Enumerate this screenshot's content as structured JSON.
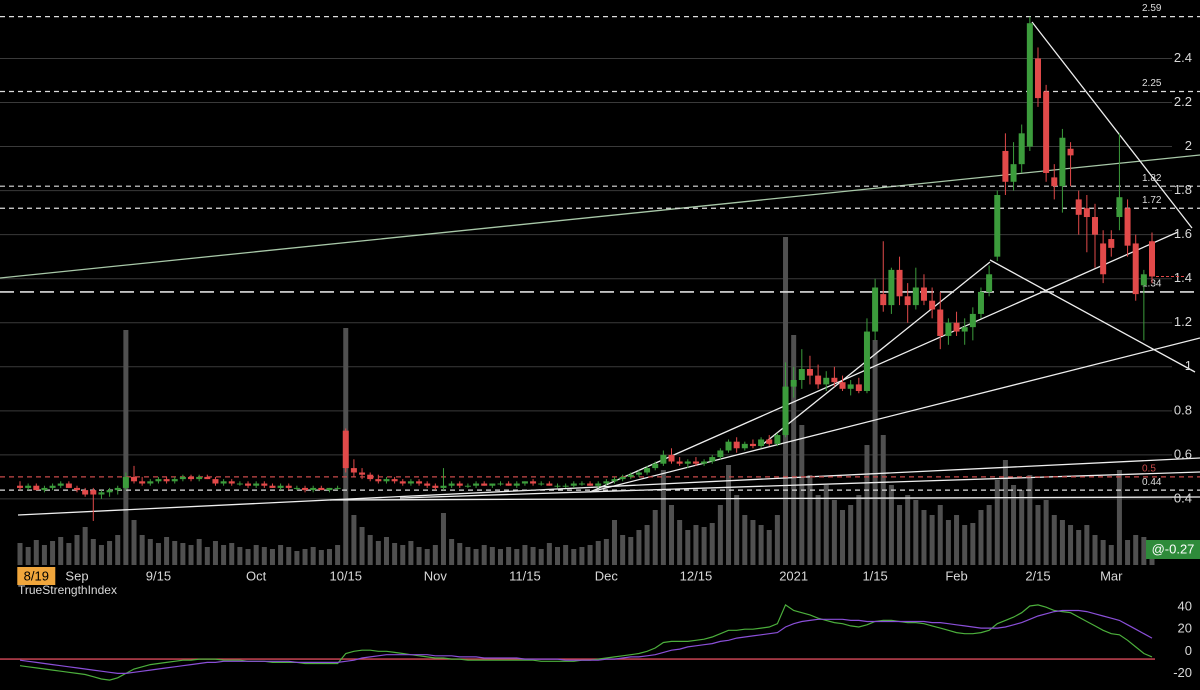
{
  "chart_data": {
    "type": "candlestick",
    "categories": [
      null,
      null,
      "8/19",
      null,
      null,
      null,
      null,
      "Sep",
      null,
      null,
      null,
      null,
      null,
      null,
      null,
      null,
      null,
      "9/15",
      null,
      null,
      null,
      null,
      null,
      null,
      null,
      null,
      null,
      null,
      null,
      "Oct",
      null,
      null,
      null,
      null,
      null,
      null,
      null,
      null,
      null,
      null,
      "10/15",
      null,
      null,
      null,
      null,
      null,
      null,
      null,
      null,
      null,
      null,
      "Nov",
      null,
      null,
      null,
      null,
      null,
      null,
      null,
      null,
      null,
      null,
      "11/15",
      null,
      null,
      null,
      null,
      null,
      null,
      null,
      null,
      null,
      "Dec",
      null,
      null,
      null,
      null,
      null,
      null,
      null,
      null,
      null,
      null,
      "12/15",
      null,
      null,
      null,
      null,
      null,
      null,
      null,
      null,
      null,
      null,
      null,
      "2021",
      null,
      null,
      null,
      null,
      null,
      null,
      null,
      null,
      null,
      "1/15",
      null,
      null,
      null,
      null,
      null,
      null,
      null,
      null,
      null,
      "Feb",
      null,
      null,
      null,
      null,
      null,
      null,
      null,
      null,
      null,
      "2/15",
      null,
      null,
      null,
      null,
      null,
      null,
      null,
      null,
      "Mar",
      null,
      null,
      null,
      null,
      null
    ],
    "ohlc": [
      [
        0.46,
        0.48,
        0.44,
        0.45
      ],
      [
        0.45,
        0.47,
        0.44,
        0.46
      ],
      [
        0.46,
        0.47,
        0.44,
        0.44
      ],
      [
        0.44,
        0.46,
        0.43,
        0.45
      ],
      [
        0.45,
        0.47,
        0.44,
        0.46
      ],
      [
        0.46,
        0.48,
        0.45,
        0.47
      ],
      [
        0.47,
        0.48,
        0.45,
        0.45
      ],
      [
        0.45,
        0.46,
        0.43,
        0.44
      ],
      [
        0.44,
        0.45,
        0.41,
        0.42
      ],
      [
        0.44,
        0.45,
        0.3,
        0.42
      ],
      [
        0.42,
        0.44,
        0.4,
        0.43
      ],
      [
        0.43,
        0.45,
        0.41,
        0.44
      ],
      [
        0.44,
        0.46,
        0.42,
        0.45
      ],
      [
        0.45,
        0.52,
        0.44,
        0.5
      ],
      [
        0.5,
        0.55,
        0.47,
        0.48
      ],
      [
        0.48,
        0.5,
        0.46,
        0.47
      ],
      [
        0.47,
        0.49,
        0.46,
        0.48
      ],
      [
        0.48,
        0.5,
        0.47,
        0.49
      ],
      [
        0.49,
        0.5,
        0.47,
        0.48
      ],
      [
        0.48,
        0.5,
        0.47,
        0.49
      ],
      [
        0.49,
        0.51,
        0.48,
        0.5
      ],
      [
        0.5,
        0.51,
        0.48,
        0.49
      ],
      [
        0.49,
        0.51,
        0.48,
        0.5
      ],
      [
        0.5,
        0.51,
        0.49,
        0.49
      ],
      [
        0.49,
        0.5,
        0.46,
        0.47
      ],
      [
        0.47,
        0.49,
        0.46,
        0.48
      ],
      [
        0.48,
        0.49,
        0.46,
        0.47
      ],
      [
        0.47,
        0.48,
        0.46,
        0.47
      ],
      [
        0.47,
        0.48,
        0.45,
        0.46
      ],
      [
        0.46,
        0.48,
        0.45,
        0.47
      ],
      [
        0.47,
        0.48,
        0.45,
        0.46
      ],
      [
        0.46,
        0.47,
        0.45,
        0.45
      ],
      [
        0.45,
        0.47,
        0.44,
        0.46
      ],
      [
        0.46,
        0.47,
        0.44,
        0.45
      ],
      [
        0.45,
        0.46,
        0.44,
        0.45
      ],
      [
        0.45,
        0.46,
        0.43,
        0.44
      ],
      [
        0.44,
        0.46,
        0.43,
        0.45
      ],
      [
        0.45,
        0.46,
        0.44,
        0.44
      ],
      [
        0.44,
        0.45,
        0.43,
        0.45
      ],
      [
        0.45,
        0.46,
        0.44,
        0.45
      ],
      [
        0.71,
        0.72,
        0.52,
        0.54
      ],
      [
        0.54,
        0.58,
        0.5,
        0.52
      ],
      [
        0.52,
        0.54,
        0.49,
        0.51
      ],
      [
        0.51,
        0.52,
        0.48,
        0.49
      ],
      [
        0.49,
        0.51,
        0.47,
        0.48
      ],
      [
        0.48,
        0.5,
        0.47,
        0.49
      ],
      [
        0.49,
        0.5,
        0.47,
        0.48
      ],
      [
        0.48,
        0.49,
        0.46,
        0.47
      ],
      [
        0.47,
        0.49,
        0.46,
        0.48
      ],
      [
        0.48,
        0.49,
        0.46,
        0.47
      ],
      [
        0.47,
        0.48,
        0.45,
        0.46
      ],
      [
        0.46,
        0.47,
        0.44,
        0.45
      ],
      [
        0.45,
        0.54,
        0.44,
        0.46
      ],
      [
        0.46,
        0.48,
        0.45,
        0.47
      ],
      [
        0.47,
        0.48,
        0.45,
        0.46
      ],
      [
        0.46,
        0.47,
        0.45,
        0.46
      ],
      [
        0.46,
        0.48,
        0.45,
        0.47
      ],
      [
        0.47,
        0.48,
        0.46,
        0.46
      ],
      [
        0.46,
        0.47,
        0.45,
        0.47
      ],
      [
        0.47,
        0.48,
        0.46,
        0.47
      ],
      [
        0.47,
        0.48,
        0.46,
        0.46
      ],
      [
        0.46,
        0.48,
        0.45,
        0.47
      ],
      [
        0.47,
        0.48,
        0.46,
        0.48
      ],
      [
        0.48,
        0.49,
        0.46,
        0.47
      ],
      [
        0.47,
        0.48,
        0.46,
        0.47
      ],
      [
        0.47,
        0.48,
        0.46,
        0.46
      ],
      [
        0.46,
        0.47,
        0.45,
        0.46
      ],
      [
        0.46,
        0.47,
        0.45,
        0.46
      ],
      [
        0.46,
        0.48,
        0.45,
        0.47
      ],
      [
        0.47,
        0.48,
        0.46,
        0.47
      ],
      [
        0.47,
        0.48,
        0.46,
        0.46
      ],
      [
        0.46,
        0.48,
        0.45,
        0.47
      ],
      [
        0.47,
        0.49,
        0.46,
        0.48
      ],
      [
        0.48,
        0.5,
        0.47,
        0.49
      ],
      [
        0.49,
        0.51,
        0.48,
        0.5
      ],
      [
        0.5,
        0.52,
        0.49,
        0.51
      ],
      [
        0.51,
        0.53,
        0.5,
        0.52
      ],
      [
        0.52,
        0.55,
        0.51,
        0.54
      ],
      [
        0.54,
        0.57,
        0.53,
        0.56
      ],
      [
        0.56,
        0.62,
        0.55,
        0.6
      ],
      [
        0.6,
        0.63,
        0.56,
        0.57
      ],
      [
        0.57,
        0.59,
        0.55,
        0.56
      ],
      [
        0.56,
        0.58,
        0.54,
        0.57
      ],
      [
        0.57,
        0.59,
        0.55,
        0.56
      ],
      [
        0.56,
        0.58,
        0.55,
        0.57
      ],
      [
        0.57,
        0.6,
        0.56,
        0.59
      ],
      [
        0.59,
        0.63,
        0.58,
        0.62
      ],
      [
        0.62,
        0.67,
        0.61,
        0.66
      ],
      [
        0.66,
        0.68,
        0.61,
        0.63
      ],
      [
        0.63,
        0.66,
        0.62,
        0.65
      ],
      [
        0.65,
        0.67,
        0.63,
        0.64
      ],
      [
        0.64,
        0.68,
        0.63,
        0.67
      ],
      [
        0.67,
        0.69,
        0.64,
        0.65
      ],
      [
        0.65,
        0.7,
        0.64,
        0.69
      ],
      [
        0.69,
        1.02,
        0.68,
        0.91
      ],
      [
        0.91,
        1.0,
        0.86,
        0.94
      ],
      [
        0.94,
        1.08,
        0.9,
        0.99
      ],
      [
        0.99,
        1.05,
        0.92,
        0.96
      ],
      [
        0.96,
        1.01,
        0.9,
        0.92
      ],
      [
        0.92,
        0.98,
        0.89,
        0.95
      ],
      [
        0.95,
        1.0,
        0.91,
        0.93
      ],
      [
        0.93,
        0.96,
        0.89,
        0.9
      ],
      [
        0.9,
        0.94,
        0.87,
        0.92
      ],
      [
        0.92,
        0.95,
        0.88,
        0.89
      ],
      [
        0.89,
        1.22,
        0.88,
        1.16
      ],
      [
        1.16,
        1.4,
        1.12,
        1.36
      ],
      [
        1.33,
        1.57,
        1.25,
        1.28
      ],
      [
        1.28,
        1.45,
        1.24,
        1.44
      ],
      [
        1.44,
        1.5,
        1.28,
        1.32
      ],
      [
        1.32,
        1.38,
        1.2,
        1.28
      ],
      [
        1.28,
        1.45,
        1.26,
        1.36
      ],
      [
        1.36,
        1.42,
        1.28,
        1.3
      ],
      [
        1.3,
        1.36,
        1.22,
        1.26
      ],
      [
        1.26,
        1.34,
        1.08,
        1.14
      ],
      [
        1.14,
        1.22,
        1.1,
        1.2
      ],
      [
        1.2,
        1.25,
        1.14,
        1.16
      ],
      [
        1.16,
        1.22,
        1.1,
        1.18
      ],
      [
        1.18,
        1.27,
        1.12,
        1.24
      ],
      [
        1.24,
        1.36,
        1.22,
        1.34
      ],
      [
        1.34,
        1.46,
        1.32,
        1.42
      ],
      [
        1.5,
        1.8,
        1.48,
        1.78
      ],
      [
        1.98,
        2.06,
        1.78,
        1.84
      ],
      [
        1.84,
        2.02,
        1.8,
        1.92
      ],
      [
        1.92,
        2.1,
        1.88,
        2.06
      ],
      [
        2.0,
        2.59,
        1.98,
        2.56
      ],
      [
        2.4,
        2.45,
        2.18,
        2.22
      ],
      [
        2.25,
        2.28,
        1.84,
        1.88
      ],
      [
        1.86,
        1.92,
        1.76,
        1.82
      ],
      [
        1.82,
        2.08,
        1.7,
        2.04
      ],
      [
        1.99,
        2.02,
        1.82,
        1.96
      ],
      [
        1.76,
        1.8,
        1.6,
        1.69
      ],
      [
        1.72,
        1.78,
        1.52,
        1.68
      ],
      [
        1.68,
        1.74,
        1.45,
        1.6
      ],
      [
        1.56,
        1.62,
        1.38,
        1.42
      ],
      [
        1.58,
        1.62,
        1.5,
        1.54
      ],
      [
        1.68,
        2.06,
        1.62,
        1.77
      ],
      [
        1.72,
        1.76,
        1.5,
        1.55
      ],
      [
        1.56,
        1.6,
        1.3,
        1.33
      ],
      [
        1.37,
        1.44,
        1.12,
        1.42
      ],
      [
        1.57,
        1.61,
        1.38,
        1.41
      ]
    ],
    "up_color": "#3c9c3c",
    "down_color": "#e24a4a",
    "volume": [
      22,
      18,
      25,
      20,
      24,
      28,
      22,
      30,
      38,
      26,
      20,
      24,
      30,
      235,
      45,
      30,
      26,
      22,
      28,
      24,
      22,
      20,
      26,
      18,
      24,
      20,
      22,
      18,
      16,
      20,
      18,
      16,
      20,
      18,
      14,
      16,
      18,
      15,
      16,
      20,
      237,
      50,
      38,
      30,
      24,
      28,
      22,
      20,
      24,
      18,
      16,
      20,
      52,
      26,
      22,
      18,
      16,
      20,
      18,
      16,
      18,
      16,
      20,
      18,
      16,
      22,
      18,
      20,
      16,
      18,
      20,
      24,
      26,
      45,
      30,
      28,
      35,
      40,
      55,
      95,
      60,
      45,
      35,
      40,
      38,
      42,
      60,
      100,
      70,
      50,
      45,
      40,
      35,
      50,
      328,
      230,
      140,
      90,
      70,
      80,
      65,
      55,
      60,
      70,
      120,
      225,
      130,
      80,
      60,
      70,
      65,
      55,
      50,
      60,
      45,
      50,
      40,
      42,
      55,
      60,
      85,
      105,
      80,
      75,
      90,
      60,
      65,
      50,
      45,
      40,
      35,
      40,
      30,
      25,
      20,
      95,
      25,
      30,
      28,
      22
    ],
    "volume_color": "#505050",
    "volume_label": "@-0.27",
    "volume_label_color": "#2e8b3a",
    "highlight_color": "#f0a63c",
    "ylim": [
      0.1,
      2.62
    ],
    "yticks": [
      0.4,
      0.6,
      0.8,
      1,
      1.2,
      1.4,
      1.6,
      1.8,
      2,
      2.2,
      2.4
    ],
    "grid": true,
    "levels": [
      {
        "value": 2.59,
        "color": "#dddddd"
      },
      {
        "value": 2.25,
        "color": "#dddddd"
      },
      {
        "value": 1.82,
        "color": "#dddddd"
      },
      {
        "value": 1.72,
        "color": "#dddddd"
      },
      {
        "value": 1.34,
        "color": "#dddddd"
      },
      {
        "value": 0.5,
        "color": "#c84a4a"
      },
      {
        "value": 0.44,
        "color": "#dddddd"
      }
    ],
    "indicator": {
      "title": "TrueStrengthIndex",
      "ylim": [
        -35,
        51
      ],
      "yticks": [
        40,
        20,
        0,
        -20
      ],
      "reference": -7,
      "reference_color": "#d84a5a",
      "series": [
        {
          "color": "#4caf3c",
          "values": [
            -13,
            -14,
            -15,
            -16,
            -17,
            -18,
            -19,
            -20,
            -21,
            -23,
            -25,
            -26,
            -24,
            -20,
            -16,
            -14,
            -12,
            -11,
            -10,
            -9,
            -8,
            -8,
            -7,
            -7,
            -7,
            -8,
            -8,
            -8,
            -9,
            -9,
            -9,
            -10,
            -10,
            -10,
            -10,
            -11,
            -11,
            -11,
            -11,
            -11,
            -2,
            0,
            1,
            1,
            0,
            0,
            -1,
            -2,
            -3,
            -4,
            -5,
            -6,
            -6,
            -7,
            -7,
            -8,
            -8,
            -8,
            -8,
            -8,
            -8,
            -8,
            -8,
            -8,
            -9,
            -9,
            -9,
            -9,
            -9,
            -8,
            -8,
            -7,
            -6,
            -5,
            -4,
            -3,
            -2,
            0,
            3,
            8,
            9,
            9,
            9,
            10,
            11,
            13,
            16,
            19,
            19,
            20,
            20,
            21,
            22,
            25,
            42,
            37,
            35,
            33,
            30,
            28,
            26,
            25,
            23,
            22,
            24,
            27,
            28,
            28,
            27,
            26,
            26,
            25,
            23,
            21,
            19,
            17,
            16,
            16,
            17,
            19,
            25,
            28,
            31,
            35,
            41,
            42,
            40,
            37,
            36,
            35,
            31,
            27,
            23,
            19,
            16,
            15,
            10,
            4,
            -2,
            -5
          ]
        },
        {
          "color": "#8a4fd8",
          "values": [
            -8,
            -9,
            -10,
            -11,
            -12,
            -13,
            -14,
            -15,
            -16,
            -17,
            -18,
            -19,
            -20,
            -20,
            -19,
            -18,
            -17,
            -16,
            -15,
            -14,
            -13,
            -12,
            -11,
            -10,
            -10,
            -9,
            -9,
            -9,
            -9,
            -9,
            -9,
            -9,
            -9,
            -9,
            -10,
            -10,
            -10,
            -10,
            -10,
            -10,
            -9,
            -8,
            -6,
            -5,
            -4,
            -3,
            -3,
            -3,
            -3,
            -3,
            -3,
            -4,
            -4,
            -4,
            -5,
            -5,
            -5,
            -6,
            -6,
            -6,
            -6,
            -6,
            -7,
            -7,
            -7,
            -7,
            -7,
            -8,
            -8,
            -8,
            -8,
            -8,
            -7,
            -7,
            -6,
            -5,
            -5,
            -4,
            -3,
            -1,
            1,
            2,
            4,
            5,
            6,
            7,
            9,
            10,
            12,
            13,
            14,
            15,
            16,
            17,
            22,
            25,
            27,
            28,
            29,
            29,
            29,
            29,
            28,
            28,
            27,
            27,
            27,
            27,
            27,
            27,
            27,
            27,
            26,
            26,
            25,
            24,
            23,
            22,
            21,
            21,
            21,
            22,
            24,
            26,
            29,
            32,
            34,
            36,
            37,
            37,
            37,
            36,
            34,
            32,
            30,
            28,
            24,
            20,
            16,
            12
          ]
        }
      ]
    }
  }
}
